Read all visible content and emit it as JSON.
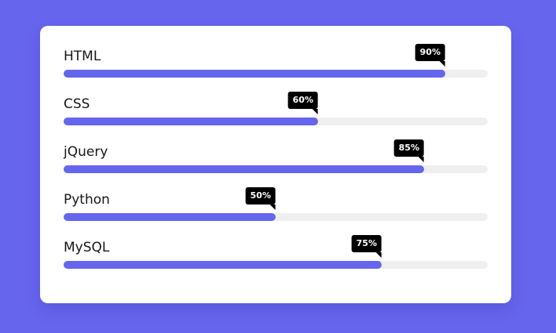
{
  "colors": {
    "background": "#6665ee",
    "card": "#ffffff",
    "bar_fill": "#6665ee",
    "bar_track": "#efefef",
    "tooltip": "#000000"
  },
  "skills": [
    {
      "name": "HTML",
      "percent": 90,
      "percent_label": "90%"
    },
    {
      "name": "CSS",
      "percent": 60,
      "percent_label": "60%"
    },
    {
      "name": "jQuery",
      "percent": 85,
      "percent_label": "85%"
    },
    {
      "name": "Python",
      "percent": 50,
      "percent_label": "50%"
    },
    {
      "name": "MySQL",
      "percent": 75,
      "percent_label": "75%"
    }
  ]
}
